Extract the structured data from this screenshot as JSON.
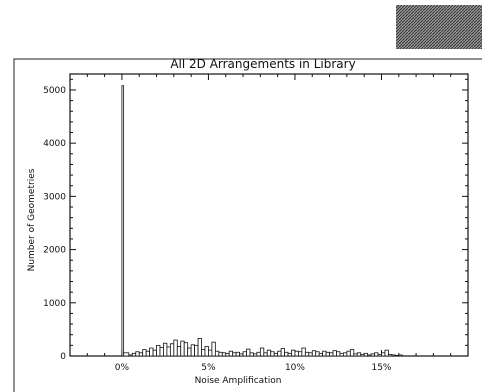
{
  "chart_data": {
    "type": "bar",
    "title": "All 2D Arrangements in Library",
    "xlabel": "Noise Amplification",
    "ylabel": "Number of Geometries",
    "xlim": [
      -3,
      20
    ],
    "ylim": [
      0,
      5300
    ],
    "x_ticks": [
      0,
      5,
      10,
      15
    ],
    "x_tick_labels": [
      "0%",
      "5%",
      "10%",
      "15%"
    ],
    "y_ticks": [
      0,
      1000,
      2000,
      3000,
      4000,
      5000
    ],
    "y_tick_labels": [
      "0",
      "1000",
      "2000",
      "3000",
      "4000",
      "5000"
    ],
    "grid": false,
    "series": [
      {
        "x": [
          0.0,
          0.1,
          0.4,
          0.6,
          0.8,
          1.0,
          1.2,
          1.4,
          1.6,
          1.8,
          2.0,
          2.2,
          2.4,
          2.6,
          2.8,
          3.0,
          3.2,
          3.4,
          3.6,
          3.8,
          4.0,
          4.2,
          4.4,
          4.6,
          4.8,
          5.0,
          5.2,
          5.4,
          5.6,
          5.8,
          6.0,
          6.2,
          6.4,
          6.6,
          6.8,
          7.0,
          7.2,
          7.4,
          7.6,
          7.8,
          8.0,
          8.2,
          8.4,
          8.6,
          8.8,
          9.0,
          9.2,
          9.4,
          9.6,
          9.8,
          10.0,
          10.2,
          10.4,
          10.6,
          10.8,
          11.0,
          11.2,
          11.4,
          11.6,
          11.8,
          12.0,
          12.2,
          12.4,
          12.6,
          12.8,
          13.0,
          13.2,
          13.4,
          13.6,
          13.8,
          14.0,
          14.2,
          14.4,
          14.6,
          14.8,
          15.0,
          15.2,
          15.4,
          15.6,
          15.8,
          16.0
        ],
        "values": [
          5080,
          60,
          20,
          50,
          80,
          60,
          120,
          90,
          150,
          110,
          200,
          160,
          240,
          170,
          230,
          300,
          180,
          280,
          250,
          150,
          210,
          200,
          330,
          120,
          180,
          110,
          260,
          90,
          70,
          60,
          50,
          90,
          60,
          70,
          40,
          80,
          130,
          60,
          40,
          70,
          150,
          60,
          110,
          80,
          50,
          90,
          140,
          70,
          50,
          110,
          90,
          80,
          150,
          70,
          60,
          100,
          80,
          50,
          90,
          70,
          60,
          100,
          80,
          50,
          60,
          90,
          120,
          40,
          60,
          30,
          50,
          20,
          40,
          60,
          30,
          60,
          110,
          30,
          20,
          10,
          20
        ]
      }
    ]
  }
}
